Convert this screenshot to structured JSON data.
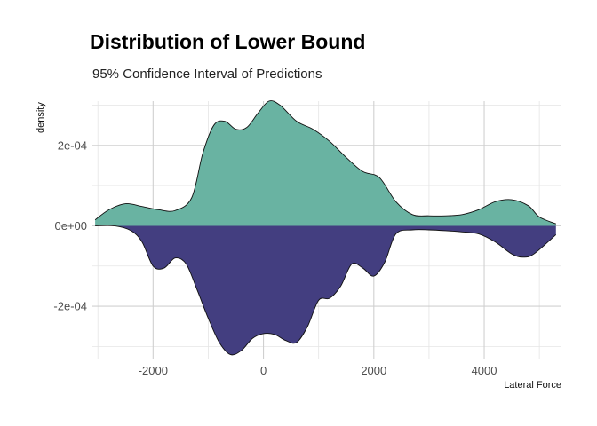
{
  "chart_data": {
    "type": "area",
    "title": "Distribution of Lower Bound",
    "subtitle": "95% Confidence Interval of Predictions",
    "xlabel": "Lateral Force",
    "ylabel": "density",
    "xlim": [
      -3100,
      5400
    ],
    "ylim": [
      -0.00033,
      0.00031
    ],
    "x_ticks": [
      -2000,
      0,
      2000,
      4000
    ],
    "x_tick_labels": [
      "-2000",
      "0",
      "2000",
      "4000"
    ],
    "y_ticks": [
      -0.0002,
      0.0,
      0.0002
    ],
    "y_tick_labels": [
      "-2e-04",
      "0e+00",
      "2e-04"
    ],
    "grid": true,
    "series": [
      {
        "color": "#69b3a2",
        "points": [
          [
            -3050,
            1.5e-05
          ],
          [
            -2800,
            4e-05
          ],
          [
            -2500,
            5.5e-05
          ],
          [
            -2200,
            4.8e-05
          ],
          [
            -1900,
            4e-05
          ],
          [
            -1600,
            3.8e-05
          ],
          [
            -1300,
            7e-05
          ],
          [
            -1100,
            0.00018
          ],
          [
            -900,
            0.00025
          ],
          [
            -700,
            0.00026
          ],
          [
            -500,
            0.00024
          ],
          [
            -300,
            0.000245
          ],
          [
            -100,
            0.00028
          ],
          [
            100,
            0.00031
          ],
          [
            300,
            0.0003
          ],
          [
            600,
            0.00026
          ],
          [
            900,
            0.00024
          ],
          [
            1200,
            0.00021
          ],
          [
            1500,
            0.00017
          ],
          [
            1800,
            0.000135
          ],
          [
            2100,
            0.00012
          ],
          [
            2400,
            6e-05
          ],
          [
            2700,
            2.8e-05
          ],
          [
            3000,
            2.5e-05
          ],
          [
            3300,
            2.5e-05
          ],
          [
            3600,
            2.8e-05
          ],
          [
            3900,
            4e-05
          ],
          [
            4200,
            6e-05
          ],
          [
            4500,
            6.5e-05
          ],
          [
            4800,
            5e-05
          ],
          [
            5000,
            2.2e-05
          ],
          [
            5300,
            5e-06
          ]
        ]
      },
      {
        "color": "#433e80",
        "points": [
          [
            -3050,
            0.0
          ],
          [
            -2700,
            0.0
          ],
          [
            -2400,
            -1.2e-05
          ],
          [
            -2200,
            -4e-05
          ],
          [
            -2000,
            -0.0001
          ],
          [
            -1800,
            -0.000105
          ],
          [
            -1600,
            -8e-05
          ],
          [
            -1400,
            -9.5e-05
          ],
          [
            -1200,
            -0.00016
          ],
          [
            -1000,
            -0.00023
          ],
          [
            -800,
            -0.00029
          ],
          [
            -600,
            -0.00032
          ],
          [
            -400,
            -0.00031
          ],
          [
            -200,
            -0.00028
          ],
          [
            0,
            -0.000268
          ],
          [
            200,
            -0.00027
          ],
          [
            400,
            -0.000285
          ],
          [
            600,
            -0.00029
          ],
          [
            800,
            -0.00025
          ],
          [
            1000,
            -0.000185
          ],
          [
            1200,
            -0.00018
          ],
          [
            1400,
            -0.00015
          ],
          [
            1600,
            -9.5e-05
          ],
          [
            1800,
            -0.000105
          ],
          [
            2000,
            -0.000125
          ],
          [
            2200,
            -9e-05
          ],
          [
            2400,
            -2e-05
          ],
          [
            2700,
            -1e-05
          ],
          [
            3000,
            -1e-05
          ],
          [
            3300,
            -1.2e-05
          ],
          [
            3600,
            -1.5e-05
          ],
          [
            3900,
            -2e-05
          ],
          [
            4200,
            -4e-05
          ],
          [
            4500,
            -7e-05
          ],
          [
            4700,
            -7.8e-05
          ],
          [
            4900,
            -7e-05
          ],
          [
            5300,
            -2.2e-05
          ]
        ]
      }
    ]
  }
}
